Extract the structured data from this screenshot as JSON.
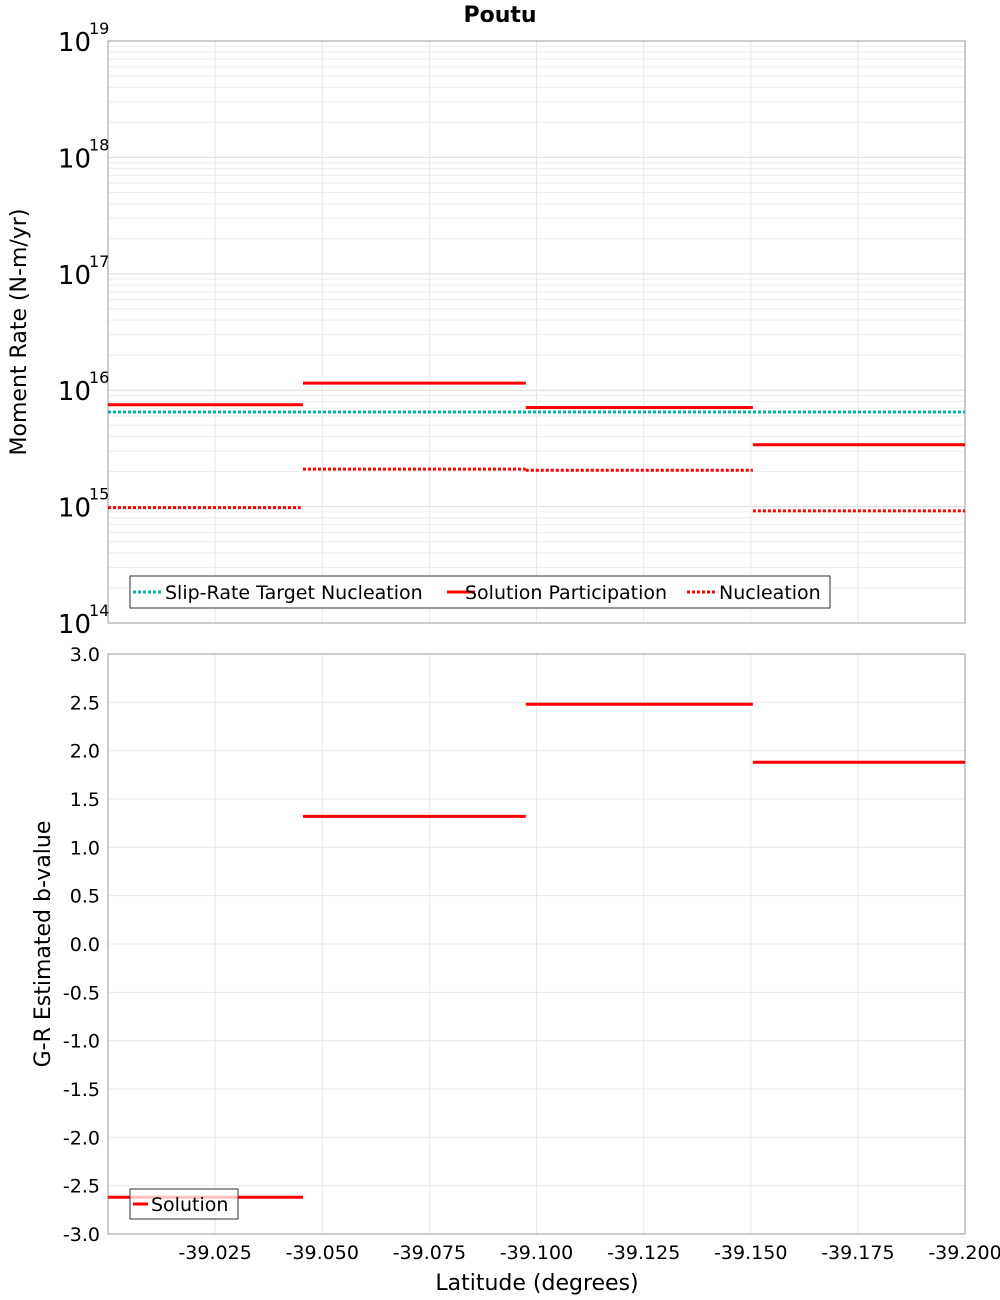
{
  "chart_data": [
    {
      "type": "line",
      "title": "Poutu",
      "xlabel": "",
      "ylabel": "Moment Rate (N-m/yr)",
      "yscale": "log",
      "ylim": [
        100000000000000.0,
        1e+19
      ],
      "xlim": [
        -39.0,
        -39.2
      ],
      "xticks": [
        -39.025,
        -39.05,
        -39.075,
        -39.1,
        -39.125,
        -39.15,
        -39.175,
        -39.2
      ],
      "yticks": [
        {
          "base": "10",
          "exp": "14",
          "value": 100000000000000.0
        },
        {
          "base": "10",
          "exp": "15",
          "value": 1000000000000000.0
        },
        {
          "base": "10",
          "exp": "16",
          "value": 1e+16
        },
        {
          "base": "10",
          "exp": "17",
          "value": 1e+17
        },
        {
          "base": "10",
          "exp": "18",
          "value": 1e+18
        },
        {
          "base": "10",
          "exp": "19",
          "value": 1e+19
        }
      ],
      "legend": [
        {
          "label": "Slip-Rate Target Nucleation",
          "color": "#00b2b2",
          "style": "dotted"
        },
        {
          "label": "Solution Participation",
          "color": "#ff0000",
          "style": "solid"
        },
        {
          "label": "Nucleation",
          "color": "#ff0000",
          "style": "dotted"
        }
      ],
      "legend_position": "bottom-left",
      "series": [
        {
          "name": "Slip-Rate Target Nucleation",
          "color": "#00b2b2",
          "style": "dotted",
          "segments": [
            {
              "x0": -39.0,
              "x1": -39.2,
              "y": 6500000000000000.0
            }
          ]
        },
        {
          "name": "Solution Participation",
          "color": "#ff0000",
          "style": "solid",
          "segments": [
            {
              "x0": -39.0,
              "x1": -39.0455,
              "y": 7500000000000000.0
            },
            {
              "x0": -39.0455,
              "x1": -39.0975,
              "y": 1.15e+16
            },
            {
              "x0": -39.0975,
              "x1": -39.1505,
              "y": 7100000000000000.0
            },
            {
              "x0": -39.1505,
              "x1": -39.2,
              "y": 3400000000000000.0
            }
          ]
        },
        {
          "name": "Nucleation",
          "color": "#ff0000",
          "style": "dotted",
          "segments": [
            {
              "x0": -39.0,
              "x1": -39.045,
              "y": 980000000000000.0
            },
            {
              "x0": -39.0455,
              "x1": -39.0975,
              "y": 2100000000000000.0
            },
            {
              "x0": -39.0975,
              "x1": -39.1505,
              "y": 2050000000000000.0
            },
            {
              "x0": -39.1505,
              "x1": -39.2,
              "y": 920000000000000.0
            }
          ]
        }
      ]
    },
    {
      "type": "line",
      "title": "",
      "xlabel": "Latitude (degrees)",
      "ylabel": "G-R Estimated b-value",
      "yscale": "linear",
      "ylim": [
        -3.0,
        3.0
      ],
      "xlim": [
        -39.0,
        -39.2
      ],
      "xticks": [
        -39.025,
        -39.05,
        -39.075,
        -39.1,
        -39.125,
        -39.15,
        -39.175,
        -39.2
      ],
      "xtick_labels": [
        "-39.025",
        "-39.050",
        "-39.075",
        "-39.100",
        "-39.125",
        "-39.150",
        "-39.175",
        "-39.200"
      ],
      "yticks": [
        -3.0,
        -2.5,
        -2.0,
        -1.5,
        -1.0,
        -0.5,
        0.0,
        0.5,
        1.0,
        1.5,
        2.0,
        2.5,
        3.0
      ],
      "ytick_labels": [
        "-3.0",
        "-2.5",
        "-2.0",
        "-1.5",
        "-1.0",
        "-0.5",
        "0.0",
        "0.5",
        "1.0",
        "1.5",
        "2.0",
        "2.5",
        "3.0"
      ],
      "legend": [
        {
          "label": "Solution",
          "color": "#ff0000",
          "style": "solid"
        }
      ],
      "legend_position": "bottom-left",
      "series": [
        {
          "name": "Solution",
          "color": "#ff0000",
          "style": "solid",
          "segments": [
            {
              "x0": -39.0,
              "x1": -39.0455,
              "y": -2.62
            },
            {
              "x0": -39.0455,
              "x1": -39.0975,
              "y": 1.32
            },
            {
              "x0": -39.0975,
              "x1": -39.1505,
              "y": 2.48
            },
            {
              "x0": -39.1505,
              "x1": -39.2,
              "y": 1.88
            }
          ]
        }
      ]
    }
  ]
}
